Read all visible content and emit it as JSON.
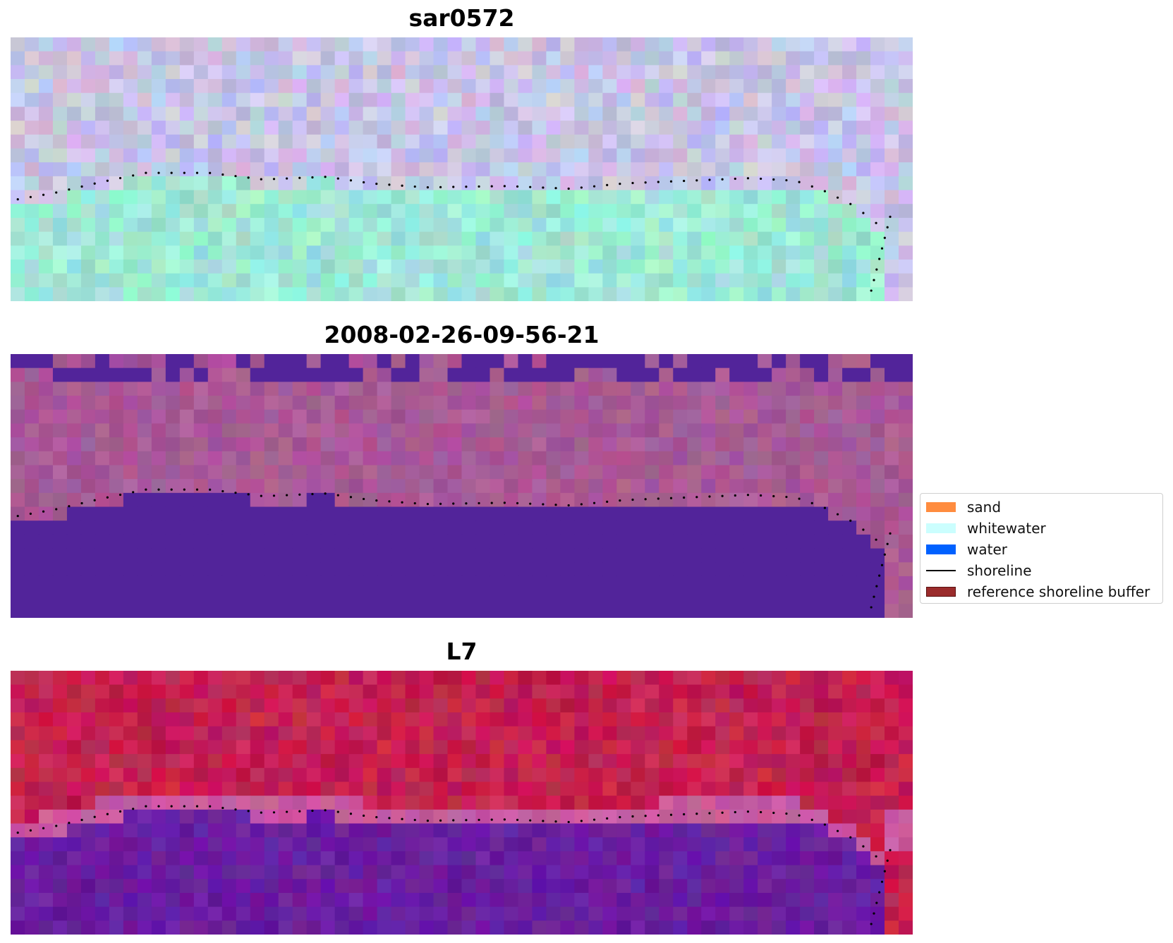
{
  "panels": [
    {
      "title": "sar0572",
      "style": "sar"
    },
    {
      "title": "2008-02-26-09-56-21",
      "style": "classified"
    },
    {
      "title": "L7",
      "style": "false-color"
    }
  ],
  "legend": {
    "items": [
      {
        "label": "sand",
        "kind": "patch",
        "color": "#ff8c3f",
        "edge": "#ff8c3f"
      },
      {
        "label": "whitewater",
        "kind": "patch",
        "color": "#cbfefe",
        "edge": "#cbfefe"
      },
      {
        "label": "water",
        "kind": "patch",
        "color": "#0061ff",
        "edge": "#0061ff"
      },
      {
        "label": "shoreline",
        "kind": "line",
        "color": "#000000"
      },
      {
        "label": "reference shoreline buffer",
        "kind": "patch",
        "color": "#9b2c2c",
        "edge": "#5a1010"
      }
    ]
  },
  "colors": {
    "sar_water": "#9fe8d6",
    "sar_land": "#c8c4e6",
    "class_water": "#52249a",
    "class_land": "#a85a96",
    "l7_land": "#c42050",
    "l7_water": "#6a1ea0",
    "shoreline_dots": "#000000"
  }
}
